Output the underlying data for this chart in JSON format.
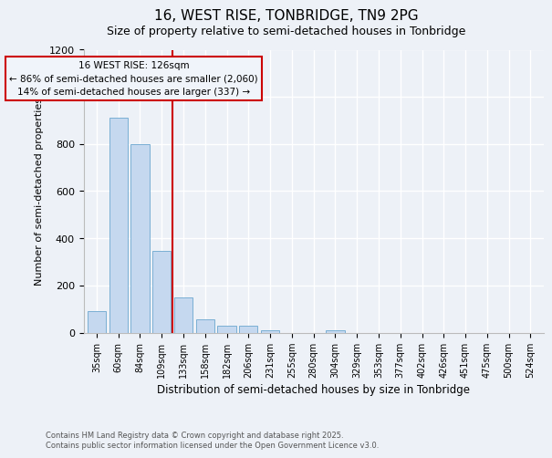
{
  "title": "16, WEST RISE, TONBRIDGE, TN9 2PG",
  "subtitle": "Size of property relative to semi-detached houses in Tonbridge",
  "xlabel": "Distribution of semi-detached houses by size in Tonbridge",
  "ylabel": "Number of semi-detached properties",
  "categories": [
    "35sqm",
    "60sqm",
    "84sqm",
    "109sqm",
    "133sqm",
    "158sqm",
    "182sqm",
    "206sqm",
    "231sqm",
    "255sqm",
    "280sqm",
    "304sqm",
    "329sqm",
    "353sqm",
    "377sqm",
    "402sqm",
    "426sqm",
    "451sqm",
    "475sqm",
    "500sqm",
    "524sqm"
  ],
  "values": [
    90,
    910,
    800,
    345,
    150,
    55,
    30,
    28,
    8,
    0,
    0,
    10,
    0,
    0,
    0,
    0,
    0,
    0,
    0,
    0,
    0
  ],
  "bar_color": "#c5d8ef",
  "bar_edge_color": "#7aafd4",
  "vline_x_index": 3.5,
  "vline_color": "#cc0000",
  "annotation_title": "16 WEST RISE: 126sqm",
  "annotation_line1": "← 86% of semi-detached houses are smaller (2,060)",
  "annotation_line2": "14% of semi-detached houses are larger (337) →",
  "annotation_box_color": "#cc0000",
  "annotation_bg": "#f0f4fa",
  "ylim": [
    0,
    1200
  ],
  "yticks": [
    0,
    200,
    400,
    600,
    800,
    1000,
    1200
  ],
  "footer1": "Contains HM Land Registry data © Crown copyright and database right 2025.",
  "footer2": "Contains public sector information licensed under the Open Government Licence v3.0.",
  "bg_color": "#edf1f7",
  "grid_color": "#ffffff",
  "title_fontsize": 11,
  "subtitle_fontsize": 9
}
